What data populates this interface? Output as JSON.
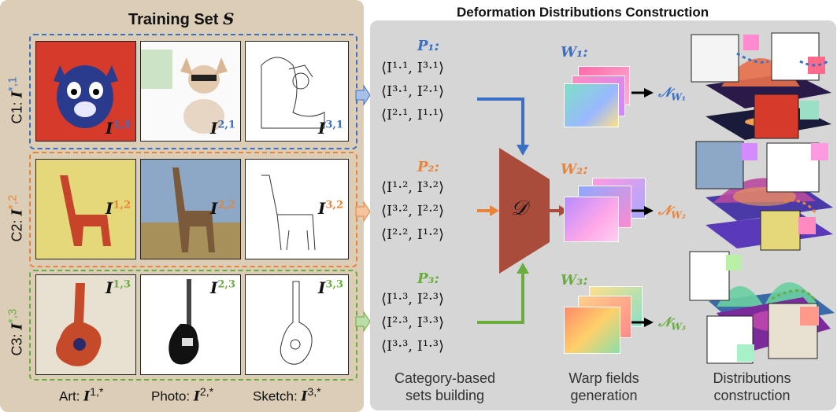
{
  "training_set": {
    "title": "Training Set ",
    "symbol": "S"
  },
  "rows": [
    {
      "id": "C1",
      "prefix": "C1: ",
      "symbol": "I",
      "sup": "*,1",
      "color": "#3b6fc4",
      "labels": [
        {
          "main": "I",
          "sup": "1,1"
        },
        {
          "main": "I",
          "sup": "2,1"
        },
        {
          "main": "I",
          "sup": "3,1"
        }
      ]
    },
    {
      "id": "C2",
      "prefix": "C2: ",
      "symbol": "I",
      "sup": "*,2",
      "color": "#e8833a",
      "labels": [
        {
          "main": "I",
          "sup": "1,2"
        },
        {
          "main": "I",
          "sup": "2,2"
        },
        {
          "main": "I",
          "sup": "3,2"
        }
      ]
    },
    {
      "id": "C3",
      "prefix": "C3: ",
      "symbol": "I",
      "sup": "*,3",
      "color": "#6aad3f",
      "labels": [
        {
          "main": "I",
          "sup": "1,3"
        },
        {
          "main": "I",
          "sup": "2,3"
        },
        {
          "main": "I",
          "sup": "3,3"
        }
      ]
    }
  ],
  "columns": [
    {
      "name": "Art: ",
      "symbol": "I",
      "sup": "1,*"
    },
    {
      "name": "Photo: ",
      "symbol": "I",
      "sup": "2,*"
    },
    {
      "name": "Sketch: ",
      "symbol": "I",
      "sup": "3,*"
    }
  ],
  "construction": {
    "title": "Deformation Distributions Construction"
  },
  "pair_sets": [
    {
      "title": "P₁:",
      "pairs": [
        "⟨I¹·¹, I³·¹⟩",
        "⟨I³·¹, I²·¹⟩",
        "⟨I²·¹, I¹·¹⟩"
      ]
    },
    {
      "title": "P₂:",
      "pairs": [
        "⟨I¹·², I³·²⟩",
        "⟨I³·², I²·²⟩",
        "⟨I²·², I¹·²⟩"
      ]
    },
    {
      "title": "P₃:",
      "pairs": [
        "⟨I¹·³, I²·³⟩",
        "⟨I²·³, I³·³⟩",
        "⟨I³·³, I¹·³⟩"
      ]
    }
  ],
  "network": {
    "symbol": "𝒟",
    "color": "#a94c3c"
  },
  "warp_fields": [
    {
      "title": "W₁:",
      "n": "𝒩",
      "sub": "W₁"
    },
    {
      "title": "W₂:",
      "n": "𝒩",
      "sub": "W₂"
    },
    {
      "title": "W₃:",
      "n": "𝒩",
      "sub": "W₃"
    }
  ],
  "captions": {
    "sets_line1": "Category-based",
    "sets_line2": "sets building",
    "warp_line1": "Warp fields",
    "warp_line2": "generation",
    "dist_line1": "Distributions",
    "dist_line2": "construction"
  }
}
